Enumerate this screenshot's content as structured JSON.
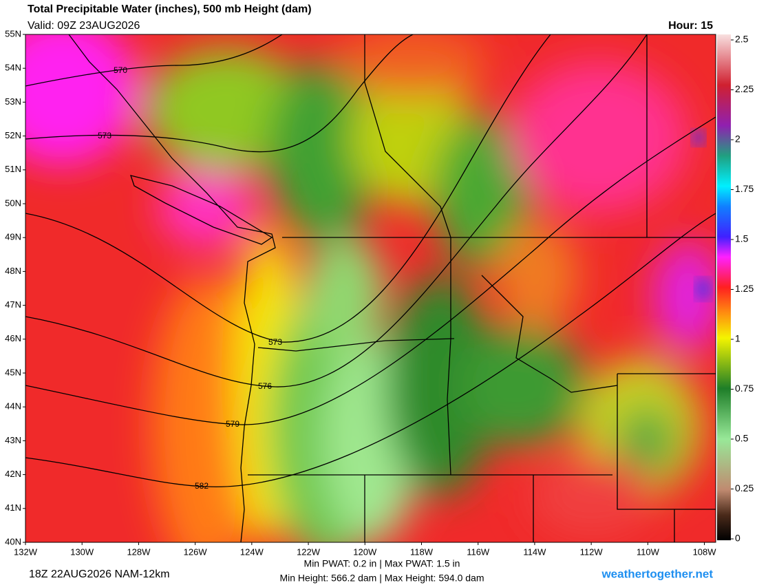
{
  "header": {
    "title": "Total Precipitable Water (inches), 500 mb Height (dam)",
    "valid": "Valid: 09Z 23AUG2026",
    "hour": "Hour: 15"
  },
  "map": {
    "xlim": [
      -132,
      -107.6
    ],
    "ylim": [
      40,
      55
    ],
    "xticks": [
      {
        "value": -132,
        "label": "132W"
      },
      {
        "value": -130,
        "label": "130W"
      },
      {
        "value": -128,
        "label": "128W"
      },
      {
        "value": -126,
        "label": "126W"
      },
      {
        "value": -124,
        "label": "124W"
      },
      {
        "value": -122,
        "label": "122W"
      },
      {
        "value": -120,
        "label": "120W"
      },
      {
        "value": -118,
        "label": "118W"
      },
      {
        "value": -116,
        "label": "116W"
      },
      {
        "value": -114,
        "label": "114W"
      },
      {
        "value": -112,
        "label": "112W"
      },
      {
        "value": -110,
        "label": "110W"
      },
      {
        "value": -108,
        "label": "108W"
      }
    ],
    "yticks": [
      {
        "value": 55,
        "label": "55N"
      },
      {
        "value": 54,
        "label": "54N"
      },
      {
        "value": 53,
        "label": "53N"
      },
      {
        "value": 52,
        "label": "52N"
      },
      {
        "value": 51,
        "label": "51N"
      },
      {
        "value": 50,
        "label": "50N"
      },
      {
        "value": 49,
        "label": "49N"
      },
      {
        "value": 48,
        "label": "48N"
      },
      {
        "value": 47,
        "label": "47N"
      },
      {
        "value": 46,
        "label": "46N"
      },
      {
        "value": 45,
        "label": "45N"
      },
      {
        "value": 44,
        "label": "44N"
      },
      {
        "value": 43,
        "label": "43N"
      },
      {
        "value": 42,
        "label": "42N"
      },
      {
        "value": 41,
        "label": "41N"
      },
      {
        "value": 40,
        "label": "40N"
      }
    ],
    "contours": [
      570,
      573,
      573,
      576,
      579,
      582
    ]
  },
  "colorbar": {
    "lim": [
      0,
      2.5
    ],
    "ticks": [
      0,
      0.25,
      0.5,
      0.75,
      1,
      1.25,
      1.5,
      1.75,
      2,
      2.25,
      2.5
    ]
  },
  "footer": {
    "run": "18Z 22AUG2026 NAM-12km",
    "pwat": "Min PWAT:   0.2 in | Max PWAT:   1.5 in",
    "height": "Min Height: 566.2 dam | Max Height: 594.0 dam",
    "site": "weathertogether.net"
  }
}
